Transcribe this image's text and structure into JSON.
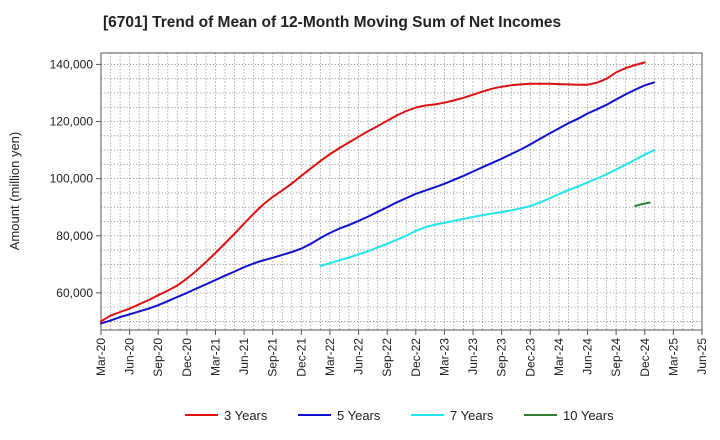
{
  "chart_data": {
    "type": "line",
    "title": "[6701]  Trend of Mean of 12-Month Moving Sum of Net Incomes",
    "ylabel": "Amount (million yen)",
    "xlabel": "",
    "x_ticks": [
      "Mar-20",
      "Jun-20",
      "Sep-20",
      "Dec-20",
      "Mar-21",
      "Jun-21",
      "Sep-21",
      "Dec-21",
      "Mar-22",
      "Jun-22",
      "Sep-22",
      "Dec-22",
      "Mar-23",
      "Jun-23",
      "Sep-23",
      "Dec-23",
      "Mar-24",
      "Jun-24",
      "Sep-24",
      "Dec-24",
      "Mar-25",
      "Jun-25"
    ],
    "y_ticks": [
      "60,000",
      "80,000",
      "100,000",
      "120,000",
      "140,000"
    ],
    "y_tick_values": [
      60000,
      80000,
      100000,
      120000,
      140000
    ],
    "ylim": [
      47000,
      144000
    ],
    "xlim_quarters": [
      0,
      21
    ],
    "grid": true,
    "legend_position": "bottom",
    "series": [
      {
        "name": "3 Years",
        "color": "#dd1111",
        "x": [
          0,
          0.33,
          0.67,
          1,
          1.33,
          1.67,
          2,
          2.33,
          2.67,
          3,
          3.33,
          3.67,
          4,
          4.33,
          4.67,
          5,
          5.33,
          5.67,
          6,
          6.33,
          6.67,
          7,
          7.33,
          7.67,
          8,
          8.33,
          8.67,
          9,
          9.33,
          9.67,
          10,
          10.33,
          10.67,
          11,
          11.33,
          11.67,
          12,
          12.33,
          12.67,
          13,
          13.33,
          13.67,
          14,
          14.33,
          14.67,
          15,
          15.33,
          15.67,
          16,
          16.33,
          16.67,
          17,
          17.33,
          17.67,
          18,
          18.33,
          18.67,
          19,
          19.33,
          19.67,
          20
        ],
        "y": [
          50000,
          52000,
          53300,
          54500,
          56000,
          57500,
          59200,
          60800,
          62600,
          65000,
          67700,
          70800,
          74000,
          77300,
          80800,
          84300,
          87700,
          91000,
          93600,
          95900,
          98300,
          101000,
          103600,
          106200,
          108600,
          110700,
          112700,
          114700,
          116600,
          118400,
          120300,
          122100,
          123700,
          124900,
          125600,
          126000,
          126600,
          127400,
          128300,
          129400,
          130500,
          131500,
          132200,
          132700,
          133000,
          133200,
          133200,
          133200,
          133100,
          133000,
          132900,
          132900,
          133600,
          135000,
          137200,
          138700,
          139800,
          140700,
          null,
          null,
          null
        ]
      },
      {
        "name": "5 Years",
        "color": "#1111cc",
        "x": [
          0,
          0.33,
          0.67,
          1,
          1.33,
          1.67,
          2,
          2.33,
          2.67,
          3,
          3.33,
          3.67,
          4,
          4.33,
          4.67,
          5,
          5.33,
          5.67,
          6,
          6.33,
          6.67,
          7,
          7.33,
          7.67,
          8,
          8.33,
          8.67,
          9,
          9.33,
          9.67,
          10,
          10.33,
          10.67,
          11,
          11.33,
          11.67,
          12,
          12.33,
          12.67,
          13,
          13.33,
          13.67,
          14,
          14.33,
          14.67,
          15,
          15.33,
          15.67,
          16,
          16.33,
          16.67,
          17,
          17.33,
          17.67,
          18,
          18.33,
          18.67,
          19,
          19.33,
          19.67,
          20
        ],
        "y": [
          49300,
          50300,
          51500,
          52500,
          53500,
          54500,
          55700,
          57100,
          58600,
          60000,
          61500,
          63000,
          64500,
          66000,
          67500,
          69000,
          70300,
          71400,
          72300,
          73300,
          74300,
          75500,
          77200,
          79200,
          81000,
          82500,
          83800,
          85200,
          86700,
          88400,
          90000,
          91700,
          93200,
          94700,
          95800,
          97000,
          98200,
          99600,
          101000,
          102500,
          104000,
          105500,
          107000,
          108600,
          110200,
          112000,
          113900,
          115800,
          117600,
          119400,
          121000,
          122800,
          124300,
          125900,
          127700,
          129500,
          131200,
          132700,
          133700,
          null,
          null
        ]
      },
      {
        "name": "7 Years",
        "color": "#22e5ee",
        "x": [
          7.67,
          8,
          8.33,
          8.67,
          9,
          9.33,
          9.67,
          10,
          10.33,
          10.67,
          11,
          11.33,
          11.67,
          12,
          12.33,
          12.67,
          13,
          13.33,
          13.67,
          14,
          14.33,
          14.67,
          15,
          15.33,
          15.67,
          16,
          16.33,
          16.67,
          17,
          17.33,
          17.67,
          18,
          18.33,
          18.67,
          19,
          19.33,
          19.67,
          20
        ],
        "y": [
          69400,
          70400,
          71400,
          72400,
          73500,
          74600,
          75900,
          77200,
          78600,
          80000,
          81700,
          83000,
          83900,
          84500,
          85200,
          85900,
          86600,
          87200,
          87800,
          88300,
          88900,
          89600,
          90400,
          91600,
          93100,
          94600,
          96000,
          97300,
          98700,
          100000,
          101600,
          103200,
          104900,
          106700,
          108400,
          110000,
          null,
          null
        ]
      },
      {
        "name": "10 Years",
        "color": "#2e7d32",
        "x": [
          18.67,
          18.83,
          19,
          19.17
        ],
        "y": [
          90400,
          90900,
          91300,
          91600
        ]
      }
    ]
  }
}
